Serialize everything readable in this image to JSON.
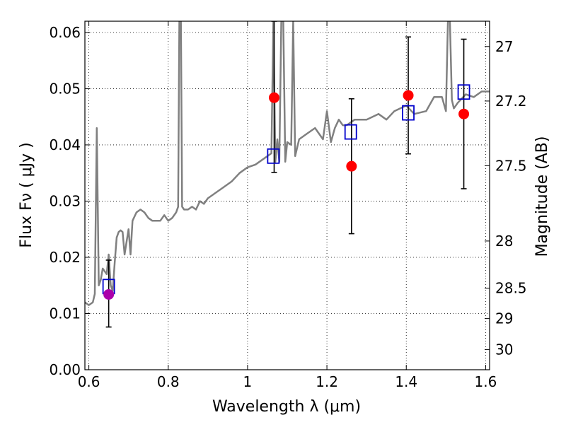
{
  "chart_data": {
    "type": "scatter",
    "xlabel": "Wavelength  λ (μm)",
    "ylabel": "Flux  Fν  ( μJy )",
    "ylabel_right": "Magnitude (AB)",
    "xlim": [
      0.59,
      1.61
    ],
    "ylim": [
      0.0,
      0.062
    ],
    "grid": true,
    "x_ticks": [
      0.6,
      0.8,
      1.0,
      1.2,
      1.4,
      1.6
    ],
    "x_tick_labels": [
      "0.6",
      "0.8",
      "1",
      "1.2",
      "1.4",
      "1.6"
    ],
    "y_ticks": [
      0.0,
      0.01,
      0.02,
      0.03,
      0.04,
      0.05,
      0.06
    ],
    "y_tick_labels": [
      "0.00",
      "0.01",
      "0.02",
      "0.03",
      "0.04",
      "0.05",
      "0.06"
    ],
    "right_ticks": [
      {
        "label": "27",
        "flux": 0.0575
      },
      {
        "label": "27.2",
        "flux": 0.0478
      },
      {
        "label": "27.5",
        "flux": 0.0363
      },
      {
        "label": "28",
        "flux": 0.0229
      },
      {
        "label": "28.5",
        "flux": 0.0145
      },
      {
        "label": "29",
        "flux": 0.0091
      },
      {
        "label": "30",
        "flux": 0.0036
      }
    ],
    "spectrum": {
      "color": "#808080",
      "x": [
        0.59,
        0.6,
        0.61,
        0.615,
        0.62,
        0.625,
        0.63,
        0.635,
        0.64,
        0.645,
        0.65,
        0.655,
        0.66,
        0.665,
        0.67,
        0.675,
        0.68,
        0.685,
        0.69,
        0.7,
        0.705,
        0.71,
        0.72,
        0.73,
        0.74,
        0.75,
        0.76,
        0.77,
        0.78,
        0.79,
        0.8,
        0.81,
        0.82,
        0.825,
        0.828,
        0.832,
        0.835,
        0.84,
        0.85,
        0.86,
        0.87,
        0.88,
        0.89,
        0.9,
        0.92,
        0.94,
        0.96,
        0.98,
        1.0,
        1.02,
        1.04,
        1.06,
        1.065,
        1.07,
        1.075,
        1.08,
        1.085,
        1.09,
        1.095,
        1.1,
        1.11,
        1.115,
        1.12,
        1.13,
        1.15,
        1.17,
        1.19,
        1.2,
        1.21,
        1.22,
        1.23,
        1.24,
        1.25,
        1.27,
        1.3,
        1.33,
        1.35,
        1.37,
        1.4,
        1.42,
        1.45,
        1.47,
        1.49,
        1.5,
        1.505,
        1.51,
        1.515,
        1.52,
        1.53,
        1.55,
        1.57,
        1.59,
        1.61
      ],
      "y": [
        0.012,
        0.0115,
        0.012,
        0.0135,
        0.043,
        0.015,
        0.016,
        0.018,
        0.0175,
        0.017,
        0.0205,
        0.015,
        0.014,
        0.019,
        0.0235,
        0.0245,
        0.0248,
        0.0245,
        0.0205,
        0.025,
        0.0205,
        0.0265,
        0.028,
        0.0285,
        0.028,
        0.027,
        0.0265,
        0.0265,
        0.0265,
        0.0275,
        0.0265,
        0.027,
        0.028,
        0.029,
        0.062,
        0.062,
        0.029,
        0.0285,
        0.0285,
        0.029,
        0.0285,
        0.03,
        0.0295,
        0.0305,
        0.0315,
        0.0325,
        0.0335,
        0.035,
        0.036,
        0.0365,
        0.0375,
        0.0385,
        0.062,
        0.037,
        0.041,
        0.037,
        0.062,
        0.062,
        0.037,
        0.0405,
        0.04,
        0.062,
        0.038,
        0.041,
        0.042,
        0.043,
        0.041,
        0.046,
        0.0405,
        0.043,
        0.0445,
        0.0435,
        0.0435,
        0.0445,
        0.0445,
        0.0455,
        0.0445,
        0.046,
        0.047,
        0.0455,
        0.046,
        0.0485,
        0.0485,
        0.046,
        0.062,
        0.062,
        0.048,
        0.0465,
        0.0475,
        0.049,
        0.0485,
        0.0495,
        0.0495
      ]
    },
    "series": [
      {
        "marker": "open-square",
        "color": "#0000cc",
        "points": [
          {
            "x": 0.65,
            "y": 0.0148
          },
          {
            "x": 1.065,
            "y": 0.038
          },
          {
            "x": 1.26,
            "y": 0.0423
          },
          {
            "x": 1.405,
            "y": 0.0457
          },
          {
            "x": 1.545,
            "y": 0.0494
          }
        ]
      },
      {
        "marker": "filled-circle",
        "color": "#ff0000",
        "points": [
          {
            "x": 0.65,
            "y": 0.0134,
            "ylo": 0.0076,
            "yhi": 0.0195,
            "color": "#aa00aa"
          },
          {
            "x": 1.067,
            "y": 0.0484,
            "ylo": 0.0351,
            "yhi": 0.062
          },
          {
            "x": 1.262,
            "y": 0.0362,
            "ylo": 0.0242,
            "yhi": 0.0482
          },
          {
            "x": 1.405,
            "y": 0.0488,
            "ylo": 0.0384,
            "yhi": 0.0592
          },
          {
            "x": 1.545,
            "y": 0.0455,
            "ylo": 0.0322,
            "yhi": 0.0588
          }
        ]
      }
    ]
  }
}
